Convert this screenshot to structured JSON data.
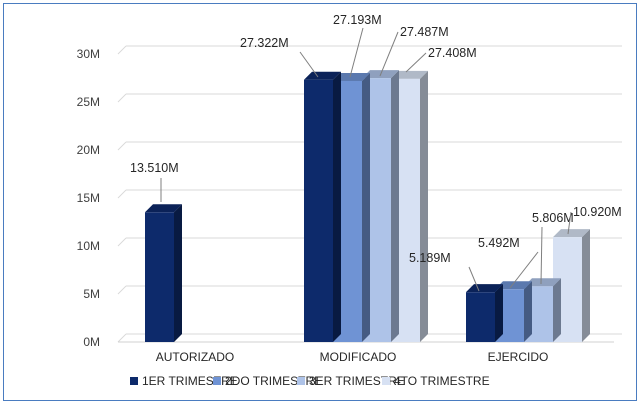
{
  "chart_data": {
    "type": "bar",
    "style": "3d-clustered-column",
    "categories": [
      "AUTORIZADO",
      "MODIFICADO",
      "EJERCIDO"
    ],
    "series": [
      {
        "name": "1ER TRIMESTRE",
        "values": [
          13.51,
          27.322,
          5.189
        ],
        "labels": [
          "13.510M",
          "27.322M",
          "5.189M"
        ],
        "color": "#0d2a6b"
      },
      {
        "name": "2DO TRIMESTRE",
        "values": [
          null,
          27.193,
          5.492
        ],
        "labels": [
          "",
          "27.193M",
          "5.492M"
        ],
        "color": "#6f93d4"
      },
      {
        "name": "3ER TRIMESTRE",
        "values": [
          null,
          27.487,
          5.806
        ],
        "labels": [
          "",
          "27.487M",
          "5.806M"
        ],
        "color": "#aec3e8"
      },
      {
        "name": "4TO TRIMESTRE",
        "values": [
          null,
          27.408,
          10.92
        ],
        "labels": [
          "",
          "27.408M",
          "10.920M"
        ],
        "color": "#d7e1f3"
      }
    ],
    "yticks": [
      "0M",
      "5M",
      "10M",
      "15M",
      "20M",
      "25M",
      "30M"
    ],
    "ylim": [
      0,
      30
    ],
    "grid": true,
    "legend": "bottom",
    "title": "",
    "xlabel": "",
    "ylabel": ""
  }
}
